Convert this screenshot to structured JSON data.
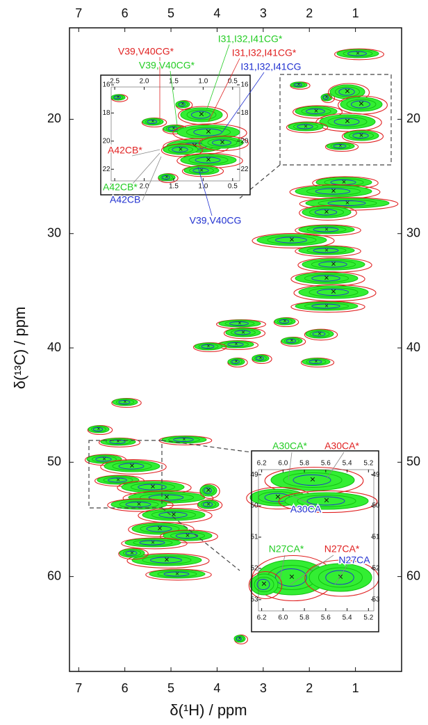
{
  "chart_data": [
    {
      "type": "contour",
      "x_label": "δ(¹H) / ppm",
      "y_label": "δ(¹³C) / ppm",
      "xlim": [
        7.2,
        0
      ],
      "ylim": [
        12,
        68.3
      ],
      "xticks": [
        7,
        6,
        5,
        4,
        3,
        2,
        1
      ],
      "yticks": [
        20,
        30,
        40,
        50,
        60
      ],
      "annotations": [
        {
          "text": "V39,V40CG*",
          "color": "#e02020"
        },
        {
          "text": "V39,V40CG*",
          "color": "#22cc22"
        },
        {
          "text": "I31,I32,I41CG*",
          "color": "#22cc22"
        },
        {
          "text": "I31,I32,I41CG*",
          "color": "#e02020"
        },
        {
          "text": "I31,I32,I41CG",
          "color": "#2030d0"
        },
        {
          "text": "A42CB*",
          "color": "#e02020"
        },
        {
          "text": "A42CB*",
          "color": "#22cc22"
        },
        {
          "text": "A42CB",
          "color": "#2030d0"
        },
        {
          "text": "V39,V40CG",
          "color": "#2030d0"
        },
        {
          "text": "A30CA*",
          "color": "#22cc22"
        },
        {
          "text": "A30CA*",
          "color": "#e02020"
        },
        {
          "text": "A30CA",
          "color": "#2030d0"
        },
        {
          "text": "N27CA*",
          "color": "#22cc22"
        },
        {
          "text": "N27CA*",
          "color": "#e02020"
        },
        {
          "text": "N27CA",
          "color": "#2030d0"
        }
      ]
    },
    {
      "type": "contour",
      "xlim": [
        2.56,
        0.38
      ],
      "ylim": [
        16.15,
        22.83
      ],
      "xticks": [
        2.5,
        {
          "value": 2,
          "label": "2.0"
        },
        1.5,
        {
          "value": 1,
          "label": "1.0"
        },
        0.5
      ],
      "yticks": [
        16,
        18,
        20,
        22
      ]
    },
    {
      "type": "contour",
      "xlim": [
        6.23,
        5.15
      ],
      "ylim": [
        48.84,
        53.36
      ],
      "xticks": [
        6.2,
        {
          "value": 6,
          "label": "6.0"
        },
        5.8,
        5.6,
        5.4,
        5.2
      ],
      "yticks": [
        49,
        50,
        51,
        52,
        53
      ]
    }
  ]
}
